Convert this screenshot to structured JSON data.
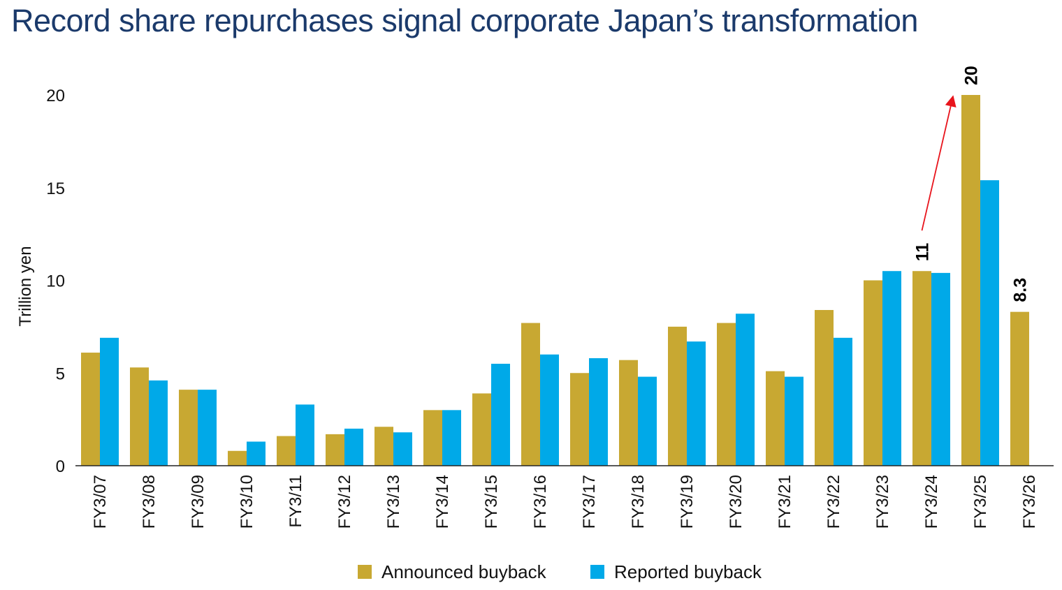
{
  "title": "Record share repurchases signal corporate Japan’s transformation",
  "chart_data": {
    "type": "bar",
    "title": "Record share repurchases signal corporate Japan’s transformation",
    "xlabel": "",
    "ylabel": "Trillion yen",
    "ylim": [
      0,
      20
    ],
    "yticks": [
      0,
      5,
      10,
      15,
      20
    ],
    "categories": [
      "FY3/07",
      "FY3/08",
      "FY3/09",
      "FY3/10",
      "FY3/11",
      "FY3/12",
      "FY3/13",
      "FY3/14",
      "FY3/15",
      "FY3/16",
      "FY3/17",
      "FY3/18",
      "FY3/19",
      "FY3/20",
      "FY3/21",
      "FY3/22",
      "FY3/23",
      "FY3/24",
      "FY3/25",
      "FY3/26"
    ],
    "series": [
      {
        "name": "Announced buyback",
        "color": "#c8a832",
        "values": [
          6.1,
          5.3,
          4.1,
          0.8,
          1.6,
          1.7,
          2.1,
          3.0,
          3.9,
          7.7,
          5.0,
          5.7,
          7.5,
          7.7,
          5.1,
          8.4,
          10.0,
          10.5,
          20.0,
          8.3
        ]
      },
      {
        "name": "Reported buyback",
        "color": "#00a9e8",
        "values": [
          6.9,
          4.6,
          4.1,
          1.3,
          3.3,
          2.0,
          1.8,
          3.0,
          5.5,
          6.0,
          5.8,
          4.8,
          6.7,
          8.2,
          4.8,
          6.9,
          10.5,
          10.4,
          15.4,
          null
        ]
      }
    ],
    "data_labels": [
      {
        "category": "FY3/24",
        "series": "Announced buyback",
        "text": "11"
      },
      {
        "category": "FY3/25",
        "series": "Announced buyback",
        "text": "20"
      },
      {
        "category": "FY3/26",
        "series": "Announced buyback",
        "text": "8.3"
      }
    ],
    "annotations": [
      {
        "type": "arrow",
        "from": "FY3/24",
        "to": "FY3/25",
        "color": "#e8141c"
      }
    ],
    "legend": {
      "position": "bottom",
      "items": [
        "Announced buyback",
        "Reported buyback"
      ]
    },
    "grid": false
  }
}
